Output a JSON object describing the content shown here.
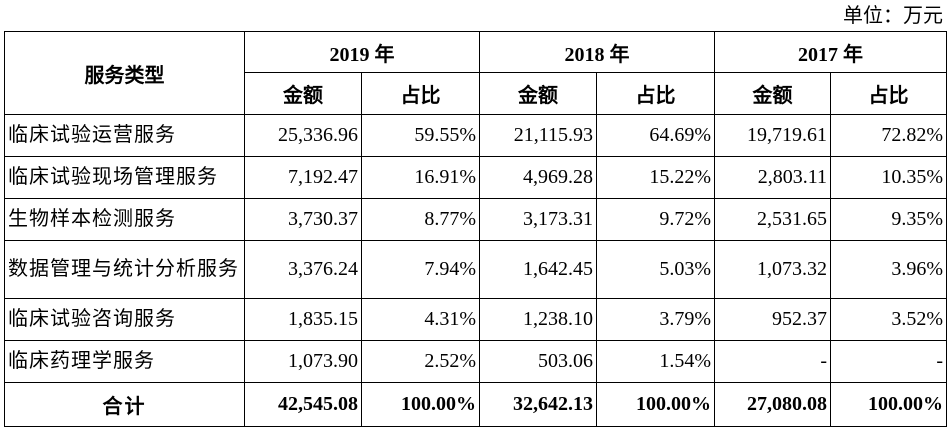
{
  "unit_note": "单位：万元",
  "table": {
    "header": {
      "service_type": "服务类型",
      "years": [
        "2019 年",
        "2018 年",
        "2017 年"
      ],
      "amount": "金额",
      "ratio": "占比"
    },
    "rows": [
      {
        "name": "临床试验运营服务",
        "values": [
          "25,336.96",
          "59.55%",
          "21,115.93",
          "64.69%",
          "19,719.61",
          "72.82%"
        ]
      },
      {
        "name": "临床试验现场管理服务",
        "values": [
          "7,192.47",
          "16.91%",
          "4,969.28",
          "15.22%",
          "2,803.11",
          "10.35%"
        ]
      },
      {
        "name": "生物样本检测服务",
        "values": [
          "3,730.37",
          "8.77%",
          "3,173.31",
          "9.72%",
          "2,531.65",
          "9.35%"
        ]
      },
      {
        "name": "数据管理与统计分析服务",
        "values": [
          "3,376.24",
          "7.94%",
          "1,642.45",
          "5.03%",
          "1,073.32",
          "3.96%"
        ]
      },
      {
        "name": "临床试验咨询服务",
        "values": [
          "1,835.15",
          "4.31%",
          "1,238.10",
          "3.79%",
          "952.37",
          "3.52%"
        ]
      },
      {
        "name": "临床药理学服务",
        "values": [
          "1,073.90",
          "2.52%",
          "503.06",
          "1.54%",
          "-",
          "-"
        ]
      }
    ],
    "total": {
      "label": "合计",
      "values": [
        "42,545.08",
        "100.00%",
        "32,642.13",
        "100.00%",
        "27,080.08",
        "100.00%"
      ]
    }
  }
}
